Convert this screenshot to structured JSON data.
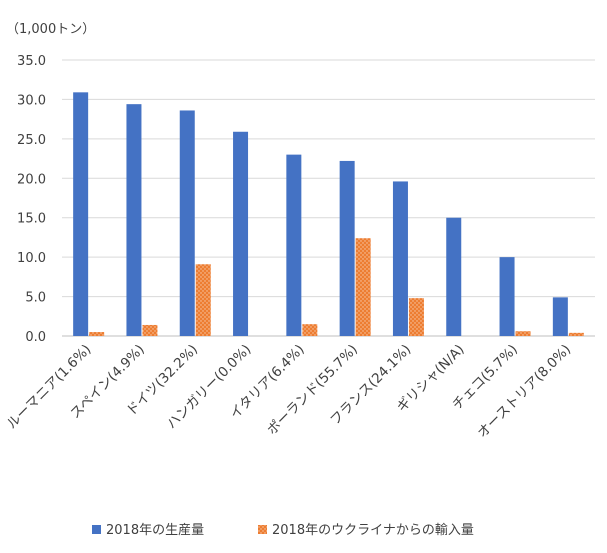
{
  "chart_data": {
    "type": "bar",
    "unit_label": "（1,000トン）",
    "categories": [
      "ルーマニア(1.6%)",
      "スペイン(4.9%)",
      "ドイツ(32.2%)",
      "ハンガリー(0.0%)",
      "イタリア(6.4%)",
      "ポーランド(55.7%)",
      "フランス(24.1%)",
      "ギリシャ(N/A)",
      "チェコ(5.7%)",
      "オーストリア(8.0%)"
    ],
    "series": [
      {
        "name": "2018年の生産量",
        "color": "#4472C4",
        "values": [
          30.9,
          29.4,
          28.6,
          25.9,
          23.0,
          22.2,
          19.6,
          15.0,
          10.0,
          4.9
        ]
      },
      {
        "name": "2018年のウクライナからの輸入量",
        "color": "#ED7D31",
        "values": [
          0.5,
          1.4,
          9.1,
          0.0,
          1.5,
          12.4,
          4.8,
          0.0,
          0.6,
          0.4
        ]
      }
    ],
    "y_ticks": [
      "0.0",
      "5.0",
      "10.0",
      "15.0",
      "20.0",
      "25.0",
      "30.0",
      "35.0"
    ],
    "ylim": [
      0,
      35
    ],
    "grid": true,
    "legend_position": "bottom"
  }
}
